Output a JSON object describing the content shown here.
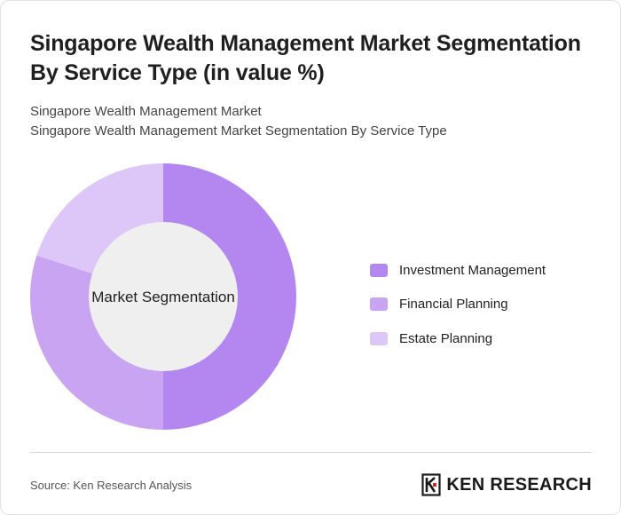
{
  "title": "Singapore Wealth Management Market Segmentation By Service Type (in value %)",
  "subtitle_lines": [
    "Singapore Wealth Management Market",
    "Singapore Wealth Management Market Segmentation By Service Type"
  ],
  "footer": {
    "source": "Source: Ken Research Analysis",
    "brand": "KEN RESEARCH",
    "brand_logo_icon": "ken-research-k-logo"
  },
  "colors": {
    "investment_management": "#b487f0",
    "financial_planning": "#c9a4f3",
    "estate_planning": "#ddc7f8",
    "hole": "#efefef"
  },
  "chart_data": {
    "type": "pie",
    "variant": "donut",
    "center_label": "Market Segmentation",
    "series": [
      {
        "name": "Investment Management",
        "value": 50,
        "color": "#b487f0"
      },
      {
        "name": "Financial Planning",
        "value": 30,
        "color": "#c9a4f3"
      },
      {
        "name": "Estate Planning",
        "value": 20,
        "color": "#ddc7f8"
      }
    ],
    "legend_position": "right"
  }
}
